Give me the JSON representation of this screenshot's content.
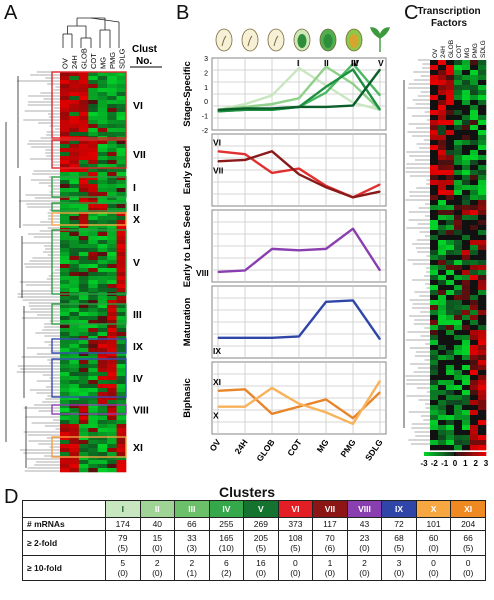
{
  "panels": {
    "a": "A",
    "b": "B",
    "c": "C",
    "d": "D"
  },
  "panel_a": {
    "column_labels": [
      "OV",
      "24H",
      "GLOB",
      "COT",
      "MG",
      "PMG",
      "SDLG"
    ],
    "header": {
      "line1": "Clust",
      "line2": "No."
    },
    "cluster_labels": [
      "VI",
      "VII",
      "I",
      "II",
      "X",
      "V",
      "III",
      "IX",
      "IV",
      "VIII",
      "XI"
    ],
    "box_colors": {
      "VI": "#e0262b",
      "VII": "#e0262b",
      "I": "#2d9c45",
      "II": "#2d9c45",
      "X": "#f5a142",
      "V": "#2d9c45",
      "III": "#2d9c45",
      "IX": "#3a4fb5",
      "IV": "#3a4fb5",
      "VIII": "#8a3fb0",
      "XI": "#f5a142"
    }
  },
  "panel_c": {
    "title_line1": "Transcription",
    "title_line2": "Factors",
    "column_labels": [
      "OV",
      "24H",
      "GLOB",
      "COT",
      "MG",
      "PMG",
      "SDLG"
    ],
    "colorbar_ticks": [
      "-3",
      "-2",
      "-1",
      "0",
      "1",
      "2",
      "3"
    ]
  },
  "chart_data": {
    "type": "line",
    "categories": [
      "OV",
      "24H",
      "GLOB",
      "COT",
      "MG",
      "PMG",
      "SDLG"
    ],
    "ylim": [
      -2,
      3
    ],
    "y_ticks": [
      "3",
      "2",
      "1",
      "0",
      "-1",
      "-2"
    ],
    "panels": [
      {
        "title": "Stage-Specific",
        "series": [
          {
            "name": "I",
            "color": "#c8e6c0",
            "values": [
              -0.6,
              -0.2,
              0.4,
              2.3,
              1.1,
              -0.1,
              -0.6
            ]
          },
          {
            "name": "II",
            "color": "#8fd08a",
            "values": [
              -0.6,
              -0.4,
              -0.2,
              0.2,
              2.4,
              1.2,
              -0.6
            ]
          },
          {
            "name": "III",
            "color": "#4cb962",
            "values": [
              -0.7,
              -0.6,
              -0.6,
              -0.4,
              0.6,
              2.6,
              0.4
            ]
          },
          {
            "name": "IV",
            "color": "#1d9140",
            "values": [
              -0.7,
              -0.6,
              -0.6,
              -0.4,
              1.0,
              2.2,
              -0.6
            ]
          },
          {
            "name": "V",
            "color": "#0b5e2a",
            "values": [
              -0.6,
              -0.5,
              -0.5,
              -0.4,
              -0.4,
              -0.3,
              2.2
            ]
          }
        ]
      },
      {
        "title": "Early Seed",
        "series": [
          {
            "name": "VI",
            "color": "#e03030",
            "values": [
              1.8,
              1.6,
              0.3,
              0.6,
              -0.6,
              -1.4,
              -0.5
            ]
          },
          {
            "name": "VII",
            "color": "#8a1a1a",
            "values": [
              1.1,
              1.2,
              1.8,
              0.2,
              -0.7,
              -1.4,
              -1.0
            ]
          }
        ]
      },
      {
        "title": "Early to Late Seed",
        "series": [
          {
            "name": "VIII",
            "color": "#8a3fb0",
            "values": [
              -1.3,
              -1.2,
              0.3,
              0.2,
              0.3,
              1.7,
              -1.2
            ]
          }
        ]
      },
      {
        "title": "Maturation",
        "series": [
          {
            "name": "IX",
            "color": "#2f46a8",
            "values": [
              -0.6,
              -0.6,
              -0.6,
              -0.5,
              1.9,
              2.0,
              -0.7
            ]
          }
        ]
      },
      {
        "title": "Biphasic",
        "series": [
          {
            "name": "XI",
            "color": "#e8852a",
            "values": [
              1.0,
              1.1,
              -0.6,
              -0.1,
              0.4,
              -0.9,
              0.9
            ]
          },
          {
            "name": "X",
            "color": "#f7b25a",
            "values": [
              -0.1,
              -0.1,
              1.2,
              0.1,
              -0.5,
              -1.3,
              1.7
            ]
          }
        ]
      }
    ]
  },
  "clusters_table": {
    "title": "Clusters",
    "clusters": [
      {
        "name": "I",
        "color": "#c8e6c0",
        "text": "#1a5c28"
      },
      {
        "name": "II",
        "color": "#9fd496",
        "text": "#ffffff"
      },
      {
        "name": "III",
        "color": "#6cc06a",
        "text": "#ffffff"
      },
      {
        "name": "IV",
        "color": "#35a84b",
        "text": "#ffffff"
      },
      {
        "name": "V",
        "color": "#13732f",
        "text": "#ffffff"
      },
      {
        "name": "VI",
        "color": "#e31e24",
        "text": "#ffffff"
      },
      {
        "name": "VII",
        "color": "#8c1616",
        "text": "#ffffff"
      },
      {
        "name": "VIII",
        "color": "#8a3fb0",
        "text": "#ffffff"
      },
      {
        "name": "IX",
        "color": "#2f46a8",
        "text": "#ffffff"
      },
      {
        "name": "X",
        "color": "#f6a742",
        "text": "#ffffff"
      },
      {
        "name": "XI",
        "color": "#ef8a22",
        "text": "#ffffff"
      }
    ],
    "rows": [
      {
        "label": "# mRNAs",
        "cells": [
          [
            "174",
            ""
          ],
          [
            "40",
            ""
          ],
          [
            "66",
            ""
          ],
          [
            "255",
            ""
          ],
          [
            "269",
            ""
          ],
          [
            "373",
            ""
          ],
          [
            "117",
            ""
          ],
          [
            "43",
            ""
          ],
          [
            "72",
            ""
          ],
          [
            "101",
            ""
          ],
          [
            "204",
            ""
          ]
        ]
      },
      {
        "label": "≥ 2-fold",
        "cells": [
          [
            "79",
            "(5)"
          ],
          [
            "15",
            "(0)"
          ],
          [
            "33",
            "(3)"
          ],
          [
            "165",
            "(10)"
          ],
          [
            "205",
            "(5)"
          ],
          [
            "108",
            "(5)"
          ],
          [
            "70",
            "(6)"
          ],
          [
            "23",
            "(0)"
          ],
          [
            "68",
            "(5)"
          ],
          [
            "60",
            "(0)"
          ],
          [
            "66",
            "(5)"
          ]
        ]
      },
      {
        "label": "≥ 10-fold",
        "cells": [
          [
            "5",
            "(0)"
          ],
          [
            "2",
            "(0)"
          ],
          [
            "2",
            "(1)"
          ],
          [
            "6",
            "(2)"
          ],
          [
            "16",
            "(0)"
          ],
          [
            "0",
            "(0)"
          ],
          [
            "1",
            "(0)"
          ],
          [
            "2",
            "(0)"
          ],
          [
            "3",
            "(0)"
          ],
          [
            "0",
            "(0)"
          ],
          [
            "0",
            "(0)"
          ]
        ]
      }
    ]
  }
}
